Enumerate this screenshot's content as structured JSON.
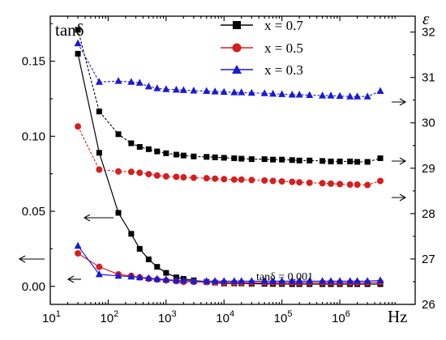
{
  "chart_data": {
    "type": "line",
    "xscale": "log",
    "xlim": [
      10,
      20000000
    ],
    "xticks": [
      10,
      100,
      1000,
      10000,
      100000,
      1000000
    ],
    "xtick_labels": [
      {
        "base": "10",
        "exp": "1"
      },
      {
        "base": "10",
        "exp": "2"
      },
      {
        "base": "10",
        "exp": "3"
      },
      {
        "base": "10",
        "exp": "4"
      },
      {
        "base": "10",
        "exp": "5"
      },
      {
        "base": "10",
        "exp": "6"
      }
    ],
    "xlabel": "Hz",
    "ylabel_left": "tanδ",
    "ylim_left": [
      -0.012,
      0.18
    ],
    "yticks_left": [
      0.0,
      0.05,
      0.1,
      0.15
    ],
    "ytick_labels_left": [
      "0.00",
      "0.05",
      "0.10",
      "0.15"
    ],
    "ylabel_right": "ε",
    "ylim_right": [
      26.0,
      32.35
    ],
    "yticks_right": [
      26,
      27,
      28,
      29,
      30,
      31,
      32
    ],
    "ytick_labels_right": [
      "26",
      "27",
      "28",
      "29",
      "30",
      "31",
      "32"
    ],
    "annotation": "tanδ = 0.001",
    "legend_position": "top-right",
    "x": [
      30,
      70,
      150,
      250,
      350,
      500,
      700,
      1000,
      1500,
      2000,
      3000,
      5000,
      7000,
      10000,
      15000,
      20000,
      30000,
      50000,
      70000,
      100000,
      150000,
      200000,
      300000,
      500000,
      700000,
      1000000,
      1500000,
      2000000,
      3000000,
      5000000
    ],
    "series": [
      {
        "name": "x = 0.7",
        "color": "#000000",
        "marker": "square",
        "tan_delta": [
          0.155,
          0.089,
          0.049,
          0.035,
          0.025,
          0.018,
          0.013,
          0.009,
          0.006,
          0.005,
          0.004,
          0.003,
          0.0025,
          0.002,
          0.002,
          0.002,
          0.0018,
          0.0017,
          0.0016,
          0.0016,
          0.0015,
          0.0015,
          0.0015,
          0.0015,
          0.0015,
          0.0015,
          0.0015,
          0.0015,
          0.0015,
          0.0015
        ],
        "epsilon": [
          32.05,
          30.25,
          29.75,
          29.55,
          29.47,
          29.42,
          29.37,
          29.33,
          29.3,
          29.28,
          29.26,
          29.25,
          29.24,
          29.23,
          29.22,
          29.21,
          29.2,
          29.2,
          29.19,
          29.19,
          29.18,
          29.17,
          29.17,
          29.16,
          29.15,
          29.15,
          29.15,
          29.14,
          29.14,
          29.22
        ]
      },
      {
        "name": "x = 0.5",
        "color": "#d42020",
        "marker": "circle",
        "tan_delta": [
          0.022,
          0.013,
          0.008,
          0.007,
          0.006,
          0.005,
          0.0045,
          0.004,
          0.0035,
          0.003,
          0.003,
          0.0028,
          0.0027,
          0.0026,
          0.0025,
          0.0025,
          0.0025,
          0.0025,
          0.0025,
          0.0025,
          0.0025,
          0.0025,
          0.0025,
          0.0025,
          0.0025,
          0.0025,
          0.0025,
          0.0025,
          0.0025,
          0.0028
        ],
        "epsilon": [
          29.92,
          28.97,
          28.93,
          28.92,
          28.9,
          28.87,
          28.84,
          28.82,
          28.81,
          28.8,
          28.79,
          28.78,
          28.77,
          28.76,
          28.75,
          28.75,
          28.74,
          28.73,
          28.72,
          28.71,
          28.7,
          28.69,
          28.68,
          28.67,
          28.66,
          28.65,
          28.64,
          28.64,
          28.63,
          28.72
        ]
      },
      {
        "name": "x = 0.3",
        "color": "#1a1ad4",
        "marker": "triangle",
        "tan_delta": [
          0.027,
          0.008,
          0.007,
          0.0065,
          0.006,
          0.0055,
          0.005,
          0.0045,
          0.004,
          0.004,
          0.0035,
          0.0035,
          0.0035,
          0.0035,
          0.0035,
          0.0035,
          0.0035,
          0.0035,
          0.0035,
          0.0035,
          0.0035,
          0.0035,
          0.0035,
          0.0035,
          0.0035,
          0.0035,
          0.0035,
          0.0035,
          0.0035,
          0.004
        ],
        "epsilon": [
          31.75,
          30.9,
          30.92,
          30.9,
          30.88,
          30.8,
          30.76,
          30.74,
          30.73,
          30.72,
          30.71,
          30.7,
          30.69,
          30.68,
          30.67,
          30.67,
          30.66,
          30.65,
          30.64,
          30.63,
          30.62,
          30.62,
          30.61,
          30.6,
          30.6,
          30.59,
          30.58,
          30.58,
          30.58,
          30.7
        ]
      }
    ]
  }
}
